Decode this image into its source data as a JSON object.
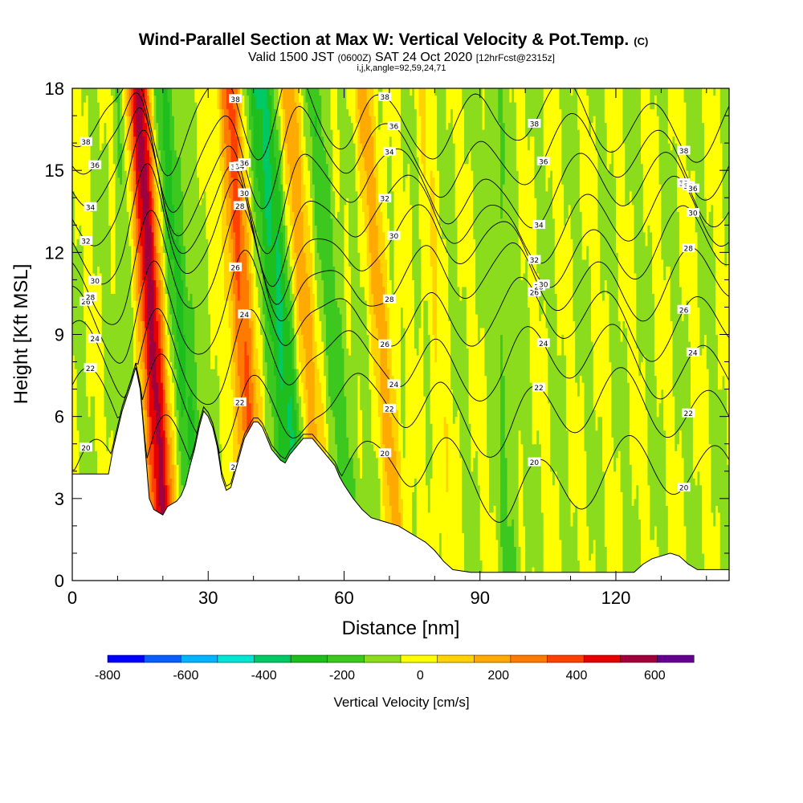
{
  "chart_data": {
    "type": "contour-section",
    "title": "Wind-Parallel Section at Max W: Vertical Velocity & Pot.Temp.",
    "title_suffix": "(C)",
    "subtitle_parts": {
      "pre": "Valid 1500 JST",
      "mid_small": "(0600Z)",
      "post": "SAT 24 Oct 2020",
      "tail_small": "[12hrFcst@2315z]"
    },
    "subtitle_line2": "i,j,k,angle=92,59,24,71",
    "xlabel": "Distance [nm]",
    "ylabel": "Height [Kft MSL]",
    "xlim": [
      0,
      145
    ],
    "ylim": [
      0,
      18
    ],
    "x_ticks": [
      "0",
      "30",
      "60",
      "90",
      "120"
    ],
    "x_tick_values": [
      0,
      30,
      60,
      90,
      120
    ],
    "y_ticks": [
      "0",
      "3",
      "6",
      "9",
      "12",
      "15",
      "18"
    ],
    "y_tick_values": [
      0,
      3,
      6,
      9,
      12,
      15,
      18
    ],
    "colorbar": {
      "label": "Vertical Velocity [cm/s]",
      "tick_labels": [
        "-800",
        "-600",
        "-400",
        "-200",
        "0",
        "200",
        "400",
        "600"
      ],
      "tick_values": [
        -800,
        -600,
        -400,
        -200,
        0,
        200,
        400,
        600
      ],
      "min": -800,
      "max": 700,
      "step": 100,
      "colors": [
        "#0000ff",
        "#0a5cff",
        "#00b4ff",
        "#00e6d2",
        "#00c864",
        "#1ebe1e",
        "#3cc81e",
        "#8cdc1e",
        "#ffff00",
        "#ffd200",
        "#ffaa00",
        "#ff7a00",
        "#ff4000",
        "#e60000",
        "#a0003c",
        "#640090"
      ]
    },
    "terrain_profile": [
      [
        0,
        3.9
      ],
      [
        8,
        3.9
      ],
      [
        9,
        4.8
      ],
      [
        10,
        5.5
      ],
      [
        11,
        6.2
      ],
      [
        12,
        6.7
      ],
      [
        13,
        7.2
      ],
      [
        14,
        7.8
      ],
      [
        15,
        7.0
      ],
      [
        16,
        5.0
      ],
      [
        17,
        3.0
      ],
      [
        18,
        2.6
      ],
      [
        19,
        2.5
      ],
      [
        20,
        2.4
      ],
      [
        21,
        2.7
      ],
      [
        22,
        2.8
      ],
      [
        23,
        2.9
      ],
      [
        24,
        3.1
      ],
      [
        25,
        3.5
      ],
      [
        26,
        4.2
      ],
      [
        27,
        4.8
      ],
      [
        28,
        5.6
      ],
      [
        29,
        6.2
      ],
      [
        30,
        6.0
      ],
      [
        31,
        5.6
      ],
      [
        32,
        4.9
      ],
      [
        33,
        3.8
      ],
      [
        34,
        3.3
      ],
      [
        35,
        3.4
      ],
      [
        36,
        4.0
      ],
      [
        37,
        4.6
      ],
      [
        38,
        5.2
      ],
      [
        39,
        5.5
      ],
      [
        40,
        5.8
      ],
      [
        41,
        5.8
      ],
      [
        42,
        5.6
      ],
      [
        43,
        5.2
      ],
      [
        44,
        4.8
      ],
      [
        45,
        4.6
      ],
      [
        46,
        4.4
      ],
      [
        47,
        4.3
      ],
      [
        48,
        4.6
      ],
      [
        49,
        4.8
      ],
      [
        50,
        5.0
      ],
      [
        51,
        5.2
      ],
      [
        52,
        5.2
      ],
      [
        53,
        5.2
      ],
      [
        54,
        5.0
      ],
      [
        55,
        4.8
      ],
      [
        56,
        4.6
      ],
      [
        57,
        4.4
      ],
      [
        58,
        4.2
      ],
      [
        59,
        3.8
      ],
      [
        60,
        3.5
      ],
      [
        62,
        3.0
      ],
      [
        64,
        2.6
      ],
      [
        66,
        2.3
      ],
      [
        68,
        2.2
      ],
      [
        70,
        2.1
      ],
      [
        72,
        2.0
      ],
      [
        74,
        1.8
      ],
      [
        76,
        1.6
      ],
      [
        78,
        1.4
      ],
      [
        80,
        1.1
      ],
      [
        82,
        0.7
      ],
      [
        84,
        0.4
      ],
      [
        88,
        0.3
      ],
      [
        96,
        0.3
      ],
      [
        110,
        0.3
      ],
      [
        118,
        0.3
      ],
      [
        124,
        0.3
      ],
      [
        126,
        0.6
      ],
      [
        128,
        0.8
      ],
      [
        132,
        1.0
      ],
      [
        134,
        0.9
      ],
      [
        136,
        0.6
      ],
      [
        138,
        0.4
      ],
      [
        145,
        0.4
      ]
    ],
    "w_features": [
      {
        "x0": 17.5,
        "slope": -0.33,
        "w": 2.0,
        "amp": 620
      },
      {
        "x0": 37.5,
        "slope": -0.34,
        "w": 1.8,
        "amp": 420
      },
      {
        "x0": 51.0,
        "slope": -0.42,
        "w": 1.8,
        "amp": 300
      },
      {
        "x0": 68.5,
        "slope": -0.45,
        "w": 1.7,
        "amp": 220
      },
      {
        "x0": 80.0,
        "slope": -0.3,
        "w": 1.4,
        "amp": 80
      },
      {
        "x0": 24.5,
        "slope": -0.5,
        "w": 1.9,
        "amp": -240
      },
      {
        "x0": 46.5,
        "slope": -0.5,
        "w": 2.2,
        "amp": -360
      },
      {
        "x0": 58.0,
        "slope": -0.55,
        "w": 2.0,
        "amp": -140
      },
      {
        "x0": 95.0,
        "slope": -0.25,
        "w": 1.6,
        "amp": -110
      },
      {
        "x0": 12.0,
        "slope": -0.2,
        "w": 1.2,
        "amp": -130
      }
    ],
    "theta_contours": [
      {
        "base_height": 3.8,
        "label": "20"
      },
      {
        "base_height": 6.2,
        "label": "22"
      },
      {
        "base_height": 8.0,
        "label": "24"
      },
      {
        "base_height": 9.6,
        "label": "26"
      },
      {
        "base_height": 11.0,
        "label": "28"
      },
      {
        "base_height": 12.2,
        "label": "30"
      },
      {
        "base_height": 13.2,
        "label": "32"
      },
      {
        "base_height": 14.3,
        "label": "34"
      },
      {
        "base_height": 15.5,
        "label": "36"
      },
      {
        "base_height": 16.8,
        "label": "38"
      }
    ]
  }
}
